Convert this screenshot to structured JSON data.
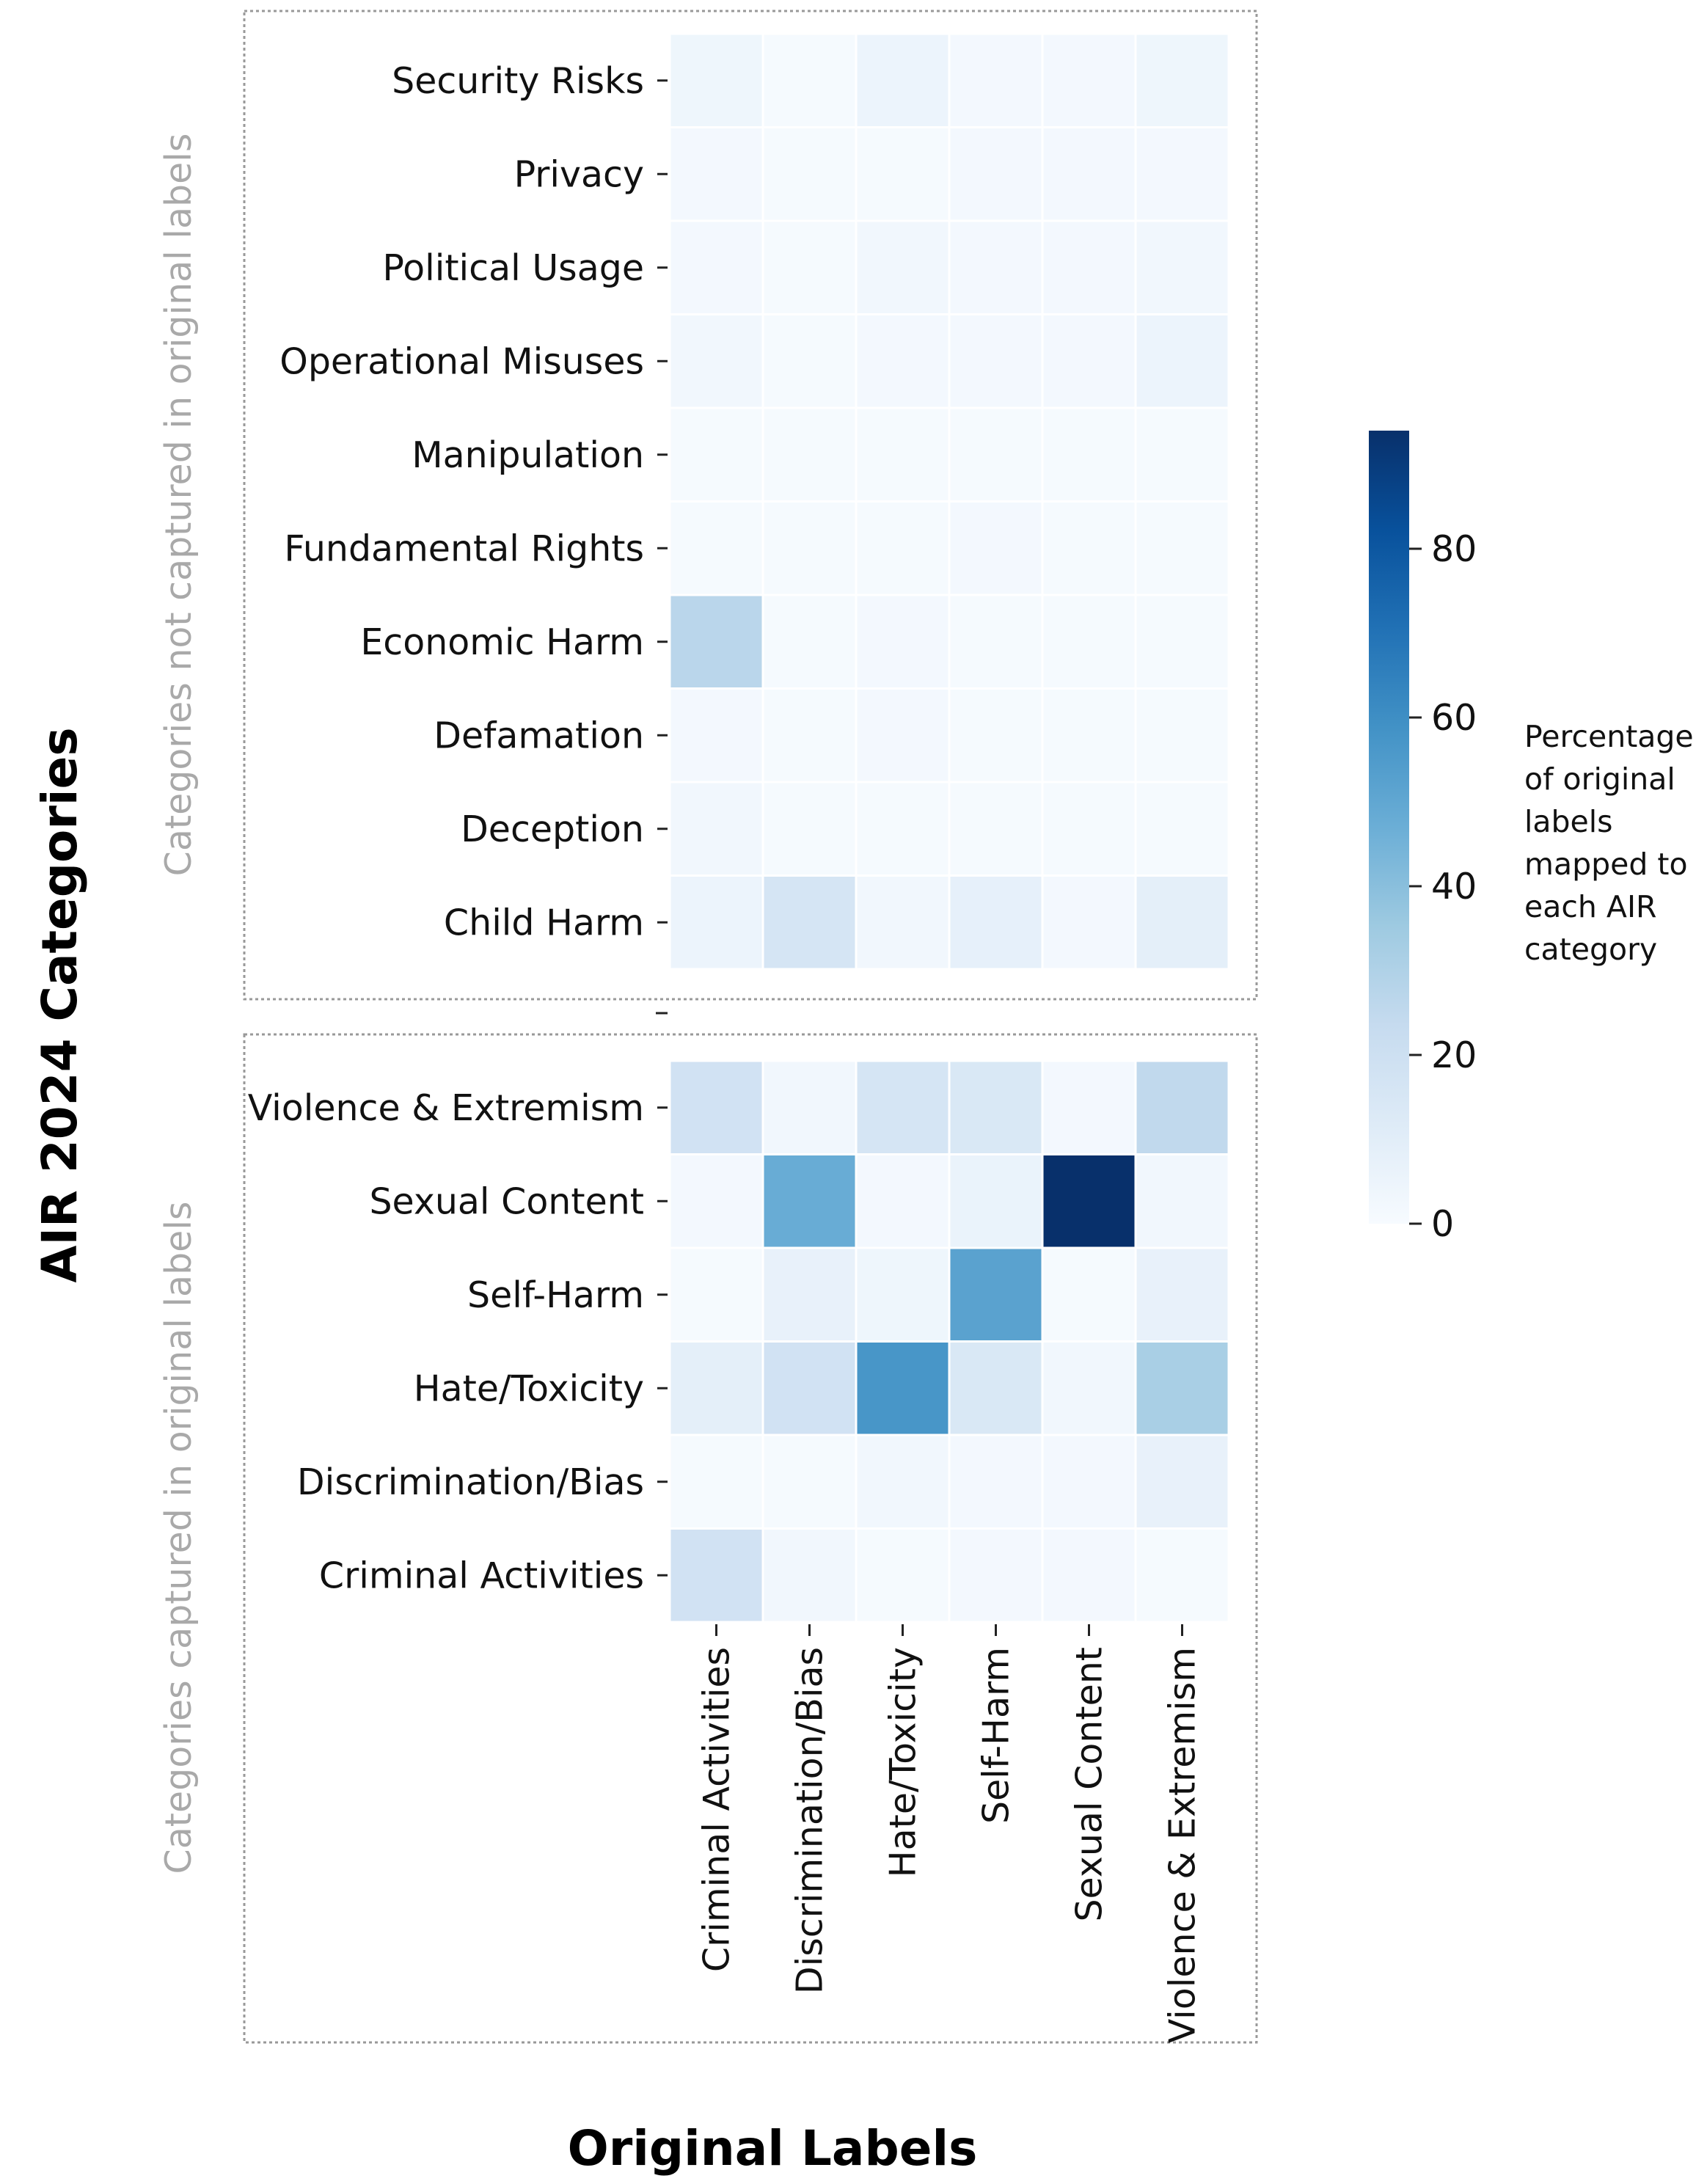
{
  "chart_data": {
    "type": "heatmap",
    "xlabel": "Original Labels",
    "ylabel": "AIR 2024 Categories",
    "columns": [
      "Criminal Activities",
      "Discrimination/Bias",
      "Hate/Toxicity",
      "Self-Harm",
      "Sexual Content",
      "Violence & Extremism"
    ],
    "groups": [
      {
        "name": "Categories not captured in original labels",
        "rows": [
          "Security Risks",
          "Privacy",
          "Political Usage",
          "Operational Misuses",
          "Manipulation",
          "Fundamental Rights",
          "Economic Harm",
          "Defamation",
          "Deception",
          "Child Harm"
        ],
        "values": [
          [
            4,
            1,
            5,
            2,
            2,
            4
          ],
          [
            2,
            1,
            1,
            2,
            2,
            2
          ],
          [
            2,
            1,
            3,
            2,
            2,
            3
          ],
          [
            3,
            1,
            2,
            2,
            2,
            5
          ],
          [
            1,
            1,
            1,
            1,
            1,
            1
          ],
          [
            1,
            1,
            1,
            2,
            1,
            1
          ],
          [
            27,
            1,
            2,
            1,
            1,
            1
          ],
          [
            2,
            1,
            2,
            1,
            1,
            1
          ],
          [
            3,
            1,
            1,
            1,
            1,
            1
          ],
          [
            5,
            16,
            3,
            8,
            2,
            9
          ]
        ]
      },
      {
        "name": "Categories captured in original labels",
        "rows": [
          "Violence & Extremism",
          "Sexual Content",
          "Self-Harm",
          "Hate/Toxicity",
          "Discrimination/Bias",
          "Criminal Activities"
        ],
        "values": [
          [
            18,
            3,
            16,
            14,
            2,
            25
          ],
          [
            2,
            48,
            2,
            6,
            94,
            3
          ],
          [
            1,
            7,
            4,
            52,
            1,
            7
          ],
          [
            9,
            18,
            57,
            14,
            3,
            32
          ],
          [
            1,
            1,
            3,
            2,
            2,
            7
          ],
          [
            18,
            3,
            1,
            2,
            2,
            1
          ]
        ]
      }
    ],
    "colorbar": {
      "title_lines": [
        "Percentage",
        "of original",
        "labels",
        "mapped to",
        "each AIR",
        "category"
      ],
      "min": 0,
      "max": 94,
      "ticks": [
        0,
        20,
        40,
        60,
        80
      ],
      "tick_labels": [
        "0",
        "20",
        "40",
        "60",
        "80"
      ],
      "colormap": "Blues"
    }
  }
}
